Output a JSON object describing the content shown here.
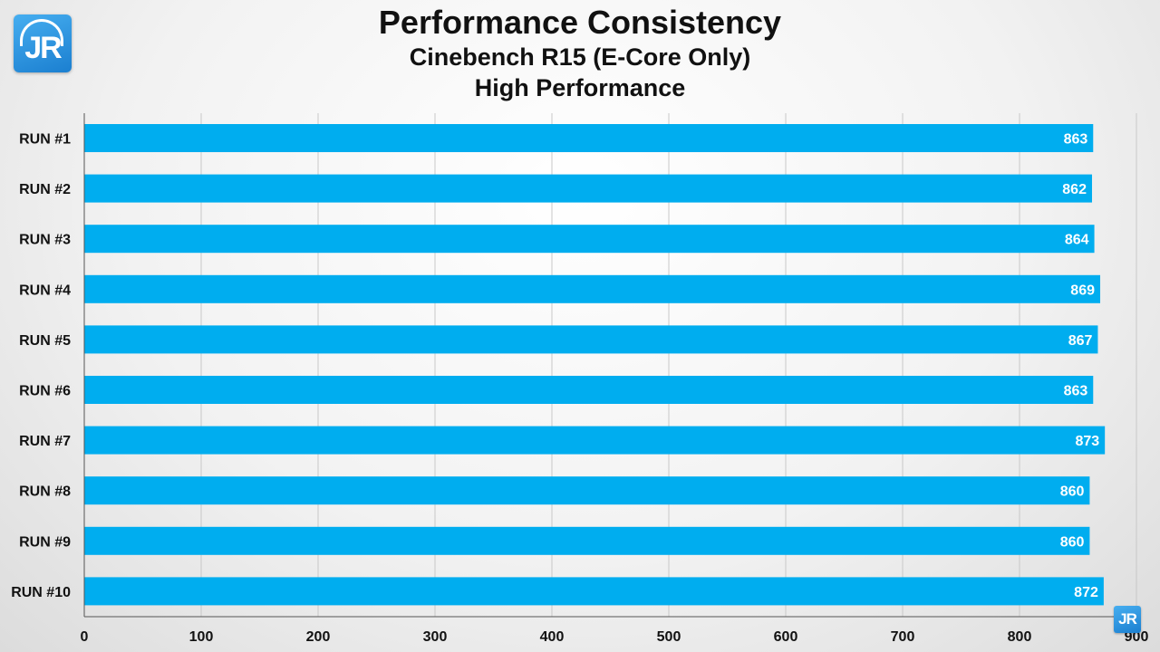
{
  "logo": {
    "text": "JR"
  },
  "logo_small": {
    "text": "JR"
  },
  "colors": {
    "bar": "#00adef",
    "grid": "#c8c8c8",
    "axis": "#555555"
  },
  "chart_data": {
    "type": "bar",
    "orientation": "horizontal",
    "title": "Performance Consistency",
    "subtitle": "Cinebench R15 (E-Core Only)",
    "subtitle2": "High Performance",
    "xlabel": "",
    "ylabel": "",
    "xlim": [
      0,
      900
    ],
    "xticks": [
      0,
      100,
      200,
      300,
      400,
      500,
      600,
      700,
      800,
      900
    ],
    "grid": true,
    "categories": [
      "RUN #1",
      "RUN #2",
      "RUN #3",
      "RUN #4",
      "RUN #5",
      "RUN #6",
      "RUN #7",
      "RUN #8",
      "RUN #9",
      "RUN #10"
    ],
    "values": [
      863,
      862,
      864,
      869,
      867,
      863,
      873,
      860,
      860,
      872
    ]
  }
}
